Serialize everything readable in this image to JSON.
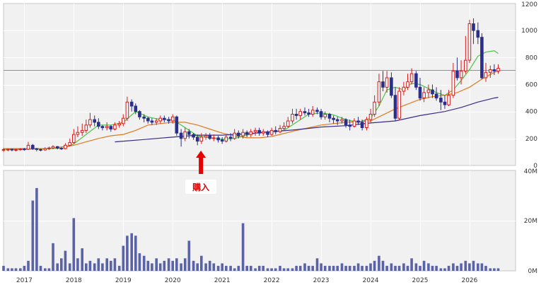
{
  "chart_data": [
    {
      "type": "candlestick",
      "panel": "price",
      "x_ticks": [
        "2017",
        "2018",
        "2019",
        "2020",
        "2021",
        "2022",
        "2023",
        "2024",
        "2025",
        "2026"
      ],
      "y_ticks": [
        "0",
        "200",
        "400",
        "600",
        "800",
        "1000",
        "1200"
      ],
      "ylim": [
        0,
        1200
      ],
      "grid": true,
      "axis_side": "right",
      "reference_line": {
        "value": 710,
        "color": "#e07070"
      },
      "annotation": {
        "text": "購入",
        "time": 2020.57,
        "color": "#e60000"
      },
      "colors": {
        "up": "#d81b1b",
        "down": "#2a2f8c",
        "panel": "#f1f1f1"
      },
      "series": [
        {
          "name": "",
          "style": "candles",
          "x": [
            2016.58,
            2016.67,
            2016.75,
            2016.83,
            2016.92,
            2017.0,
            2017.08,
            2017.17,
            2017.25,
            2017.33,
            2017.42,
            2017.5,
            2017.58,
            2017.67,
            2017.75,
            2017.83,
            2017.92,
            2018.0,
            2018.08,
            2018.17,
            2018.25,
            2018.33,
            2018.42,
            2018.5,
            2018.58,
            2018.67,
            2018.75,
            2018.83,
            2018.92,
            2019.0,
            2019.08,
            2019.17,
            2019.25,
            2019.33,
            2019.42,
            2019.5,
            2019.58,
            2019.67,
            2019.75,
            2019.83,
            2019.92,
            2020.0,
            2020.08,
            2020.17,
            2020.25,
            2020.33,
            2020.42,
            2020.5,
            2020.58,
            2020.67,
            2020.75,
            2020.83,
            2020.92,
            2021.0,
            2021.08,
            2021.17,
            2021.25,
            2021.33,
            2021.42,
            2021.5,
            2021.58,
            2021.67,
            2021.75,
            2021.83,
            2021.92,
            2022.0,
            2022.08,
            2022.17,
            2022.25,
            2022.33,
            2022.42,
            2022.5,
            2022.58,
            2022.67,
            2022.75,
            2022.83,
            2022.92,
            2023.0,
            2023.08,
            2023.17,
            2023.25,
            2023.33,
            2023.42,
            2023.5,
            2023.58,
            2023.67,
            2023.75,
            2023.83,
            2023.92,
            2024.0,
            2024.08,
            2024.17,
            2024.25,
            2024.33,
            2024.42,
            2024.5,
            2024.58,
            2024.67,
            2024.75,
            2024.83,
            2024.92,
            2025.0,
            2025.08,
            2025.17,
            2025.25,
            2025.33,
            2025.42,
            2025.5,
            2025.58,
            2025.67,
            2025.75,
            2025.83,
            2025.92,
            2026.0,
            2026.08,
            2026.17,
            2026.25,
            2026.33,
            2026.42,
            2026.5,
            2026.58
          ],
          "open": [
            115,
            118,
            120,
            115,
            118,
            122,
            120,
            150,
            125,
            118,
            115,
            125,
            130,
            140,
            128,
            125,
            150,
            170,
            230,
            245,
            260,
            300,
            340,
            320,
            290,
            280,
            290,
            270,
            300,
            310,
            350,
            470,
            440,
            400,
            360,
            350,
            330,
            320,
            330,
            350,
            340,
            330,
            360,
            240,
            200,
            250,
            230,
            210,
            180,
            210,
            220,
            200,
            205,
            190,
            180,
            210,
            200,
            240,
            220,
            245,
            230,
            250,
            260,
            240,
            250,
            230,
            260,
            250,
            275,
            290,
            330,
            380,
            370,
            400,
            390,
            380,
            410,
            400,
            360,
            380,
            350,
            340,
            330,
            340,
            300,
            290,
            330,
            320,
            280,
            340,
            380,
            470,
            620,
            580,
            650,
            520,
            350,
            550,
            580,
            620,
            680,
            580,
            500,
            540,
            560,
            530,
            500,
            470,
            450,
            520,
            700,
            650,
            700,
            780,
            1050,
            1000,
            950,
            650,
            690,
            710,
            700
          ],
          "close": [
            118,
            120,
            115,
            118,
            122,
            120,
            150,
            125,
            118,
            115,
            125,
            130,
            140,
            128,
            125,
            150,
            170,
            230,
            245,
            260,
            300,
            340,
            320,
            290,
            280,
            290,
            270,
            300,
            310,
            350,
            470,
            440,
            400,
            360,
            350,
            330,
            320,
            330,
            350,
            340,
            330,
            360,
            240,
            200,
            250,
            230,
            210,
            180,
            210,
            220,
            200,
            205,
            190,
            180,
            210,
            200,
            240,
            220,
            245,
            230,
            250,
            260,
            240,
            250,
            230,
            260,
            250,
            275,
            290,
            330,
            380,
            370,
            400,
            390,
            380,
            410,
            400,
            360,
            380,
            350,
            340,
            330,
            340,
            300,
            290,
            330,
            320,
            280,
            340,
            380,
            470,
            620,
            580,
            650,
            520,
            350,
            550,
            580,
            620,
            680,
            580,
            500,
            540,
            560,
            530,
            500,
            470,
            450,
            520,
            700,
            650,
            700,
            780,
            1050,
            1000,
            950,
            650,
            690,
            710,
            700,
            720
          ],
          "high": [
            130,
            125,
            125,
            125,
            128,
            130,
            175,
            160,
            130,
            125,
            135,
            140,
            150,
            145,
            135,
            165,
            200,
            270,
            290,
            310,
            340,
            390,
            370,
            350,
            300,
            320,
            300,
            320,
            330,
            380,
            510,
            490,
            460,
            410,
            380,
            360,
            350,
            350,
            370,
            370,
            360,
            380,
            370,
            270,
            280,
            270,
            240,
            230,
            240,
            240,
            240,
            230,
            220,
            210,
            230,
            240,
            270,
            260,
            270,
            260,
            270,
            280,
            280,
            270,
            260,
            280,
            290,
            300,
            320,
            360,
            420,
            420,
            420,
            430,
            420,
            440,
            430,
            420,
            400,
            390,
            370,
            360,
            360,
            350,
            340,
            350,
            360,
            340,
            360,
            420,
            520,
            680,
            700,
            700,
            690,
            580,
            580,
            620,
            680,
            720,
            700,
            650,
            580,
            600,
            600,
            580,
            560,
            520,
            560,
            760,
            800,
            780,
            960,
            1080,
            1090,
            1060,
            980,
            760,
            740,
            750,
            750
          ],
          "low": [
            100,
            105,
            105,
            105,
            110,
            110,
            115,
            115,
            105,
            105,
            110,
            115,
            120,
            120,
            115,
            120,
            140,
            160,
            210,
            220,
            240,
            280,
            290,
            270,
            260,
            260,
            250,
            260,
            280,
            290,
            330,
            400,
            380,
            340,
            320,
            310,
            300,
            300,
            310,
            320,
            310,
            310,
            220,
            140,
            180,
            200,
            190,
            150,
            160,
            190,
            190,
            180,
            170,
            160,
            170,
            180,
            190,
            200,
            200,
            210,
            210,
            220,
            220,
            220,
            210,
            220,
            230,
            240,
            260,
            280,
            310,
            340,
            340,
            370,
            360,
            360,
            380,
            340,
            340,
            320,
            310,
            300,
            310,
            280,
            260,
            280,
            300,
            260,
            260,
            320,
            360,
            440,
            550,
            540,
            500,
            330,
            340,
            520,
            560,
            600,
            560,
            480,
            470,
            500,
            500,
            480,
            410,
            420,
            440,
            500,
            630,
            600,
            680,
            760,
            900,
            900,
            640,
            620,
            650,
            670,
            680
          ]
        },
        {
          "name": "",
          "style": "line",
          "color": "#49c44a",
          "x": [
            2016.58,
            2017.0,
            2017.5,
            2017.83,
            2018.0,
            2018.25,
            2018.5,
            2018.75,
            2019.0,
            2019.25,
            2019.5,
            2019.75,
            2020.0,
            2020.17,
            2020.5,
            2020.75,
            2021.0,
            2021.25,
            2021.5,
            2021.75,
            2022.0,
            2022.25,
            2022.5,
            2022.75,
            2023.0,
            2023.25,
            2023.5,
            2023.75,
            2024.0,
            2024.17,
            2024.33,
            2024.5,
            2024.67,
            2024.83,
            2025.0,
            2025.17,
            2025.33,
            2025.5,
            2025.67,
            2025.83,
            2026.0,
            2026.17,
            2026.33,
            2026.5,
            2026.58
          ],
          "y": [
            120,
            120,
            125,
            130,
            160,
            230,
            300,
            300,
            320,
            400,
            360,
            340,
            340,
            300,
            220,
            205,
            195,
            200,
            225,
            245,
            250,
            260,
            320,
            380,
            390,
            375,
            340,
            320,
            350,
            440,
            560,
            580,
            560,
            610,
            600,
            570,
            540,
            520,
            560,
            630,
            710,
            810,
            840,
            850,
            830
          ]
        },
        {
          "name": "",
          "style": "line",
          "color": "#e07a20",
          "x": [
            2016.58,
            2017.0,
            2017.5,
            2018.0,
            2018.25,
            2018.5,
            2018.75,
            2019.0,
            2019.25,
            2019.5,
            2019.75,
            2020.0,
            2020.25,
            2020.5,
            2020.75,
            2021.0,
            2021.25,
            2021.5,
            2021.75,
            2022.0,
            2022.5,
            2023.0,
            2023.5,
            2024.0,
            2024.5,
            2025.0,
            2025.25,
            2025.5,
            2025.75,
            2026.0,
            2026.25,
            2026.5,
            2026.58
          ],
          "y": [
            125,
            125,
            125,
            150,
            175,
            200,
            220,
            230,
            260,
            300,
            310,
            320,
            320,
            300,
            270,
            240,
            220,
            205,
            205,
            215,
            260,
            300,
            320,
            330,
            420,
            490,
            510,
            520,
            540,
            580,
            640,
            690,
            700
          ]
        },
        {
          "name": "",
          "style": "line",
          "color": "#3a2a90",
          "x": [
            2018.83,
            2019.5,
            2020.0,
            2020.5,
            2021.0,
            2021.5,
            2022.0,
            2022.5,
            2023.0,
            2023.5,
            2024.0,
            2024.5,
            2025.0,
            2025.5,
            2025.83,
            2026.17,
            2026.5,
            2026.58
          ],
          "y": [
            175,
            195,
            210,
            225,
            225,
            235,
            250,
            265,
            285,
            295,
            315,
            330,
            370,
            400,
            430,
            470,
            500,
            505
          ]
        }
      ]
    },
    {
      "type": "bar",
      "panel": "volume",
      "x_ticks": [
        "2017",
        "2018",
        "2019",
        "2020",
        "2021",
        "2022",
        "2023",
        "2024",
        "2025",
        "2026"
      ],
      "y_ticks": [
        "0M",
        "20M",
        "40M"
      ],
      "ylim": [
        0,
        40
      ],
      "grid": true,
      "axis_side": "right",
      "colors": {
        "bar": "#5b63a8"
      },
      "x": [
        2016.58,
        2016.67,
        2016.75,
        2016.83,
        2016.92,
        2017.0,
        2017.08,
        2017.17,
        2017.25,
        2017.33,
        2017.42,
        2017.5,
        2017.58,
        2017.67,
        2017.75,
        2017.83,
        2017.92,
        2018.0,
        2018.08,
        2018.17,
        2018.25,
        2018.33,
        2018.42,
        2018.5,
        2018.58,
        2018.67,
        2018.75,
        2018.83,
        2018.92,
        2019.0,
        2019.08,
        2019.17,
        2019.25,
        2019.33,
        2019.42,
        2019.5,
        2019.58,
        2019.67,
        2019.75,
        2019.83,
        2019.92,
        2020.0,
        2020.08,
        2020.17,
        2020.25,
        2020.33,
        2020.42,
        2020.5,
        2020.58,
        2020.67,
        2020.75,
        2020.83,
        2020.92,
        2021.0,
        2021.08,
        2021.17,
        2021.25,
        2021.33,
        2021.42,
        2021.5,
        2021.58,
        2021.67,
        2021.75,
        2021.83,
        2021.92,
        2022.0,
        2022.08,
        2022.17,
        2022.25,
        2022.33,
        2022.42,
        2022.5,
        2022.58,
        2022.67,
        2022.75,
        2022.83,
        2022.92,
        2023.0,
        2023.08,
        2023.17,
        2023.25,
        2023.33,
        2023.42,
        2023.5,
        2023.58,
        2023.67,
        2023.75,
        2023.83,
        2023.92,
        2024.0,
        2024.08,
        2024.17,
        2024.25,
        2024.33,
        2024.42,
        2024.5,
        2024.58,
        2024.67,
        2024.75,
        2024.83,
        2024.92,
        2025.0,
        2025.08,
        2025.17,
        2025.25,
        2025.33,
        2025.42,
        2025.5,
        2025.58,
        2025.67,
        2025.75,
        2025.83,
        2025.92,
        2026.0,
        2026.08,
        2026.17,
        2026.25,
        2026.33,
        2026.42,
        2026.5,
        2026.58
      ],
      "values": [
        2,
        1,
        1,
        1,
        1,
        2,
        4,
        28,
        33,
        2,
        1,
        1,
        11,
        3,
        5,
        8,
        3,
        21,
        5,
        9,
        3,
        4,
        3,
        5,
        3,
        5,
        4,
        5,
        2,
        10,
        14,
        15,
        14,
        7,
        6,
        4,
        3,
        5,
        3,
        4,
        5,
        4,
        5,
        3,
        5,
        12,
        4,
        3,
        6,
        3,
        4,
        3,
        2,
        3,
        2,
        2,
        1,
        2,
        19,
        2,
        2,
        1,
        2,
        2,
        1,
        1,
        1,
        2,
        1,
        1,
        1,
        2,
        2,
        3,
        2,
        2,
        5,
        3,
        2,
        2,
        2,
        2,
        3,
        2,
        2,
        2,
        3,
        2,
        2,
        3,
        4,
        6,
        4,
        2,
        3,
        2,
        2,
        3,
        2,
        5,
        3,
        2,
        4,
        3,
        2,
        2,
        1,
        1,
        2,
        3,
        2,
        3,
        4,
        3,
        4,
        3,
        3,
        2,
        1,
        1,
        1
      ]
    }
  ]
}
